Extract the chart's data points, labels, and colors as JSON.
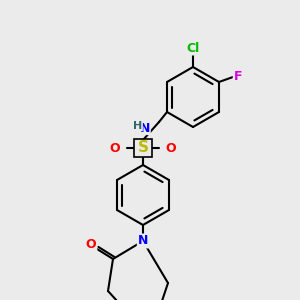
{
  "background_color": "#ebebeb",
  "bond_color": "#000000",
  "bond_width": 1.5,
  "atom_labels": {
    "Cl": {
      "color": "#00bb00",
      "fontsize": 9
    },
    "F": {
      "color": "#dd00dd",
      "fontsize": 9
    },
    "N": {
      "color": "#0000ff",
      "fontsize": 9
    },
    "O": {
      "color": "#ff0000",
      "fontsize": 9
    },
    "S": {
      "color": "#bbbb00",
      "fontsize": 11
    },
    "H": {
      "color": "#336666",
      "fontsize": 8
    }
  },
  "figsize": [
    3.0,
    3.0
  ],
  "dpi": 100
}
